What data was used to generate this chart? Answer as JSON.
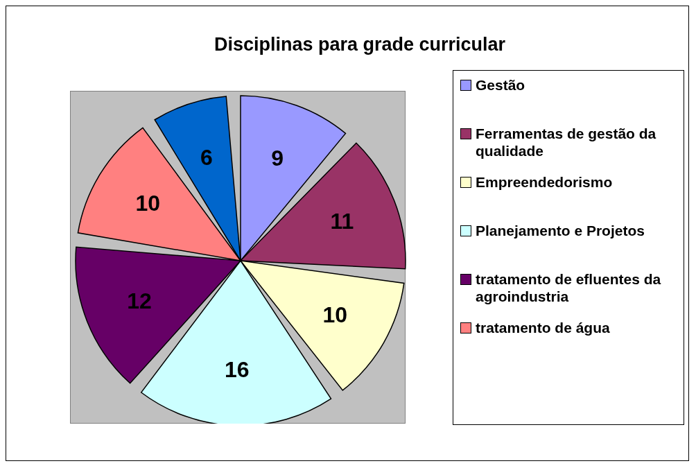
{
  "chart_data": {
    "type": "pie",
    "title": "Disciplinas para grade curricular",
    "categories": [
      "Gestão",
      "Ferramentas de gestão da qualidade",
      "Empreendedorismo",
      "Planejamento e Projetos",
      "tratamento de efluentes da agroindustria",
      "tratamento de água",
      null
    ],
    "values": [
      9,
      11,
      10,
      16,
      12,
      10,
      6
    ],
    "colors": [
      "#9999ff",
      "#993366",
      "#ffffcc",
      "#ccffff",
      "#660066",
      "#ff8080",
      "#0066cc"
    ],
    "data_labels": true,
    "legend": "right"
  }
}
